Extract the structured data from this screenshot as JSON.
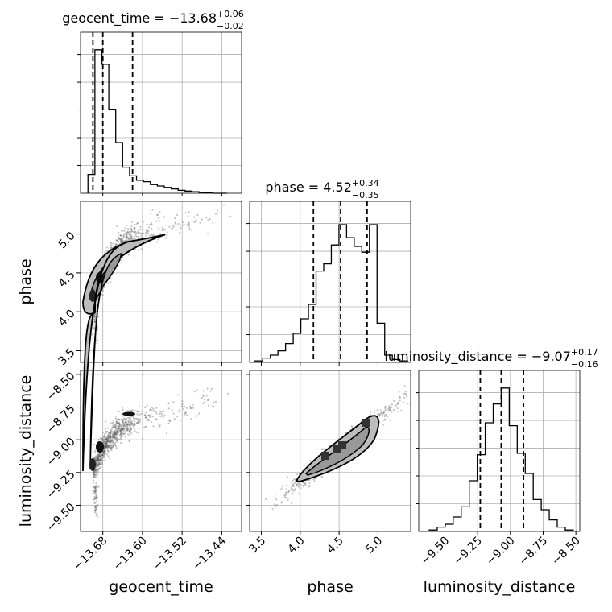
{
  "chart_data": {
    "type": "corner",
    "parameters": [
      "geocent_time",
      "phase",
      "luminosity_distance"
    ],
    "titles": [
      {
        "param": "geocent_time",
        "median": "−13.68",
        "plus": "+0.06",
        "minus": "−0.02",
        "label": "geocent_time = −13.68"
      },
      {
        "param": "phase",
        "median": "4.52",
        "plus": "+0.34",
        "minus": "−0.35",
        "label": "phase = 4.52"
      },
      {
        "param": "luminosity_distance",
        "median": "−9.07",
        "plus": "+0.17",
        "minus": "−0.16",
        "label": "luminosity_distance = −9.07"
      }
    ],
    "axes": {
      "geocent_time": {
        "range": [
          -13.725,
          -13.4
        ],
        "ticks": [
          -13.68,
          -13.6,
          -13.52,
          -13.44
        ],
        "tick_labels": [
          "−13.68",
          "−13.60",
          "−13.52",
          "−13.44"
        ],
        "xlabel": "geocent_time"
      },
      "phase": {
        "range": [
          3.35,
          5.42
        ],
        "ticks": [
          3.5,
          4.0,
          4.5,
          5.0
        ],
        "tick_labels": [
          "3.5",
          "4.0",
          "4.5",
          "5.0"
        ],
        "xlabel": "phase",
        "ylabel": "phase"
      },
      "luminosity_distance": {
        "range": [
          -9.7,
          -8.47
        ],
        "ticks": [
          -9.5,
          -9.25,
          -9.0,
          -8.75,
          -8.5
        ],
        "tick_labels": [
          "−9.50",
          "−9.25",
          "−9.00",
          "−8.75",
          "−8.50"
        ],
        "xlabel": "luminosity_distance",
        "ylabel": "luminosity_distance"
      }
    },
    "histograms": {
      "geocent_time": {
        "counts": [
          0.13,
          0.99,
          0.89,
          0.58,
          0.35,
          0.18,
          0.12,
          0.09,
          0.08,
          0.06,
          0.05,
          0.04,
          0.03,
          0.02,
          0.015,
          0.01,
          0.005,
          0.003,
          0,
          0
        ],
        "quantiles": [
          -13.7,
          -13.68,
          -13.62
        ]
      },
      "phase": {
        "counts": [
          0.01,
          0.03,
          0.05,
          0.08,
          0.13,
          0.2,
          0.3,
          0.4,
          0.63,
          0.68,
          0.81,
          0.95,
          0.86,
          0.8,
          0.76,
          0.95,
          0.27,
          0.05,
          0.02,
          0.01
        ],
        "quantiles": [
          4.17,
          4.52,
          4.86
        ]
      },
      "luminosity_distance": {
        "counts": [
          0.01,
          0.03,
          0.05,
          0.1,
          0.17,
          0.35,
          0.53,
          0.75,
          0.88,
          0.99,
          0.73,
          0.54,
          0.4,
          0.22,
          0.15,
          0.08,
          0.03,
          0.01
        ],
        "quantiles": [
          -9.23,
          -9.07,
          -8.9
        ]
      }
    },
    "grid": true,
    "gridcolor": "#b0b0b0",
    "linecolor": "#000000",
    "pointcolor": "#555555"
  }
}
